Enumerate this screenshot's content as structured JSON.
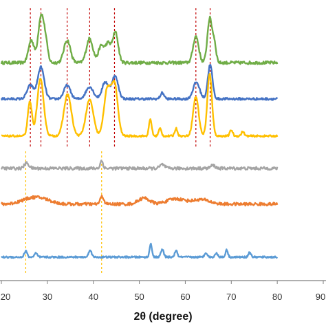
{
  "chart_data": {
    "type": "line",
    "title": "",
    "xlabel": "2θ (degree)",
    "ylabel": "",
    "xlim": [
      20,
      90
    ],
    "xticks": [
      "20",
      "30",
      "40",
      "50",
      "60",
      "70",
      "80",
      "90"
    ],
    "grid": false,
    "legend": "none",
    "series": [
      {
        "color": "#70AD47",
        "baseline": 0.08,
        "noise": 0.02,
        "peaks": [
          [
            26.5,
            0.3,
            0.6
          ],
          [
            28.6,
            0.6,
            0.6
          ],
          [
            29.6,
            0.25,
            0.5
          ],
          [
            34.3,
            0.3,
            0.7
          ],
          [
            39.2,
            0.32,
            0.7
          ],
          [
            41.7,
            0.22,
            0.6
          ],
          [
            43.2,
            0.25,
            0.6
          ],
          [
            44.8,
            0.4,
            0.6
          ],
          [
            62.3,
            0.35,
            0.6
          ],
          [
            65.3,
            0.58,
            0.5
          ],
          [
            66.3,
            0.25,
            0.4
          ]
        ]
      },
      {
        "color": "#4472C4",
        "baseline": 0.02,
        "noise": 0.015,
        "peaks": [
          [
            26.3,
            0.18,
            0.7
          ],
          [
            28.6,
            0.42,
            0.7
          ],
          [
            34.3,
            0.18,
            0.7
          ],
          [
            39.2,
            0.16,
            0.8
          ],
          [
            42.6,
            0.22,
            0.7
          ],
          [
            44.7,
            0.3,
            0.7
          ],
          [
            55.0,
            0.08,
            0.4
          ],
          [
            62.4,
            0.22,
            0.7
          ],
          [
            65.4,
            0.45,
            0.5
          ]
        ]
      },
      {
        "color": "#FFC000",
        "baseline": 0.02,
        "noise": 0.012,
        "peaks": [
          [
            26.2,
            0.45,
            0.45
          ],
          [
            28.5,
            0.75,
            0.7
          ],
          [
            34.4,
            0.55,
            0.8
          ],
          [
            39.2,
            0.48,
            0.8
          ],
          [
            43.0,
            0.6,
            0.7
          ],
          [
            44.6,
            0.68,
            0.7
          ],
          [
            52.4,
            0.22,
            0.3
          ],
          [
            54.5,
            0.1,
            0.3
          ],
          [
            58.0,
            0.1,
            0.3
          ],
          [
            62.3,
            0.52,
            0.6
          ],
          [
            65.3,
            0.82,
            0.5
          ],
          [
            70.0,
            0.08,
            0.3
          ],
          [
            72.5,
            0.06,
            0.3
          ]
        ]
      },
      {
        "color": "#A5A5A5",
        "baseline": 0.02,
        "noise": 0.02,
        "peaks": [
          [
            25.5,
            0.07,
            0.5
          ],
          [
            41.8,
            0.1,
            0.3
          ],
          [
            55.0,
            0.05,
            0.5
          ],
          [
            66.0,
            0.04,
            0.5
          ]
        ]
      },
      {
        "color": "#ED7D31",
        "baseline": 0.02,
        "noise": 0.02,
        "peaks": [
          [
            26.0,
            0.06,
            2.0
          ],
          [
            29.0,
            0.06,
            2.0
          ],
          [
            41.9,
            0.1,
            0.4
          ],
          [
            51.0,
            0.08,
            1.2
          ],
          [
            58.0,
            0.07,
            2.0
          ],
          [
            63.5,
            0.06,
            1.8
          ]
        ]
      },
      {
        "color": "#5B9BD5",
        "baseline": 0.02,
        "noise": 0.012,
        "peaks": [
          [
            25.3,
            0.08,
            0.3
          ],
          [
            27.5,
            0.05,
            0.3
          ],
          [
            39.3,
            0.1,
            0.3
          ],
          [
            52.5,
            0.18,
            0.25
          ],
          [
            55.0,
            0.1,
            0.3
          ],
          [
            58.0,
            0.08,
            0.3
          ],
          [
            64.5,
            0.06,
            0.3
          ],
          [
            66.8,
            0.05,
            0.3
          ],
          [
            69.0,
            0.1,
            0.25
          ],
          [
            74.0,
            0.06,
            0.3
          ]
        ]
      }
    ],
    "reference_lines": [
      {
        "color": "#C00000",
        "x": [
          26.3,
          28.6,
          34.3,
          39.2,
          44.6,
          62.3,
          65.4
        ]
      },
      {
        "color": "#FFC000",
        "x": [
          25.3,
          41.8
        ]
      }
    ]
  }
}
